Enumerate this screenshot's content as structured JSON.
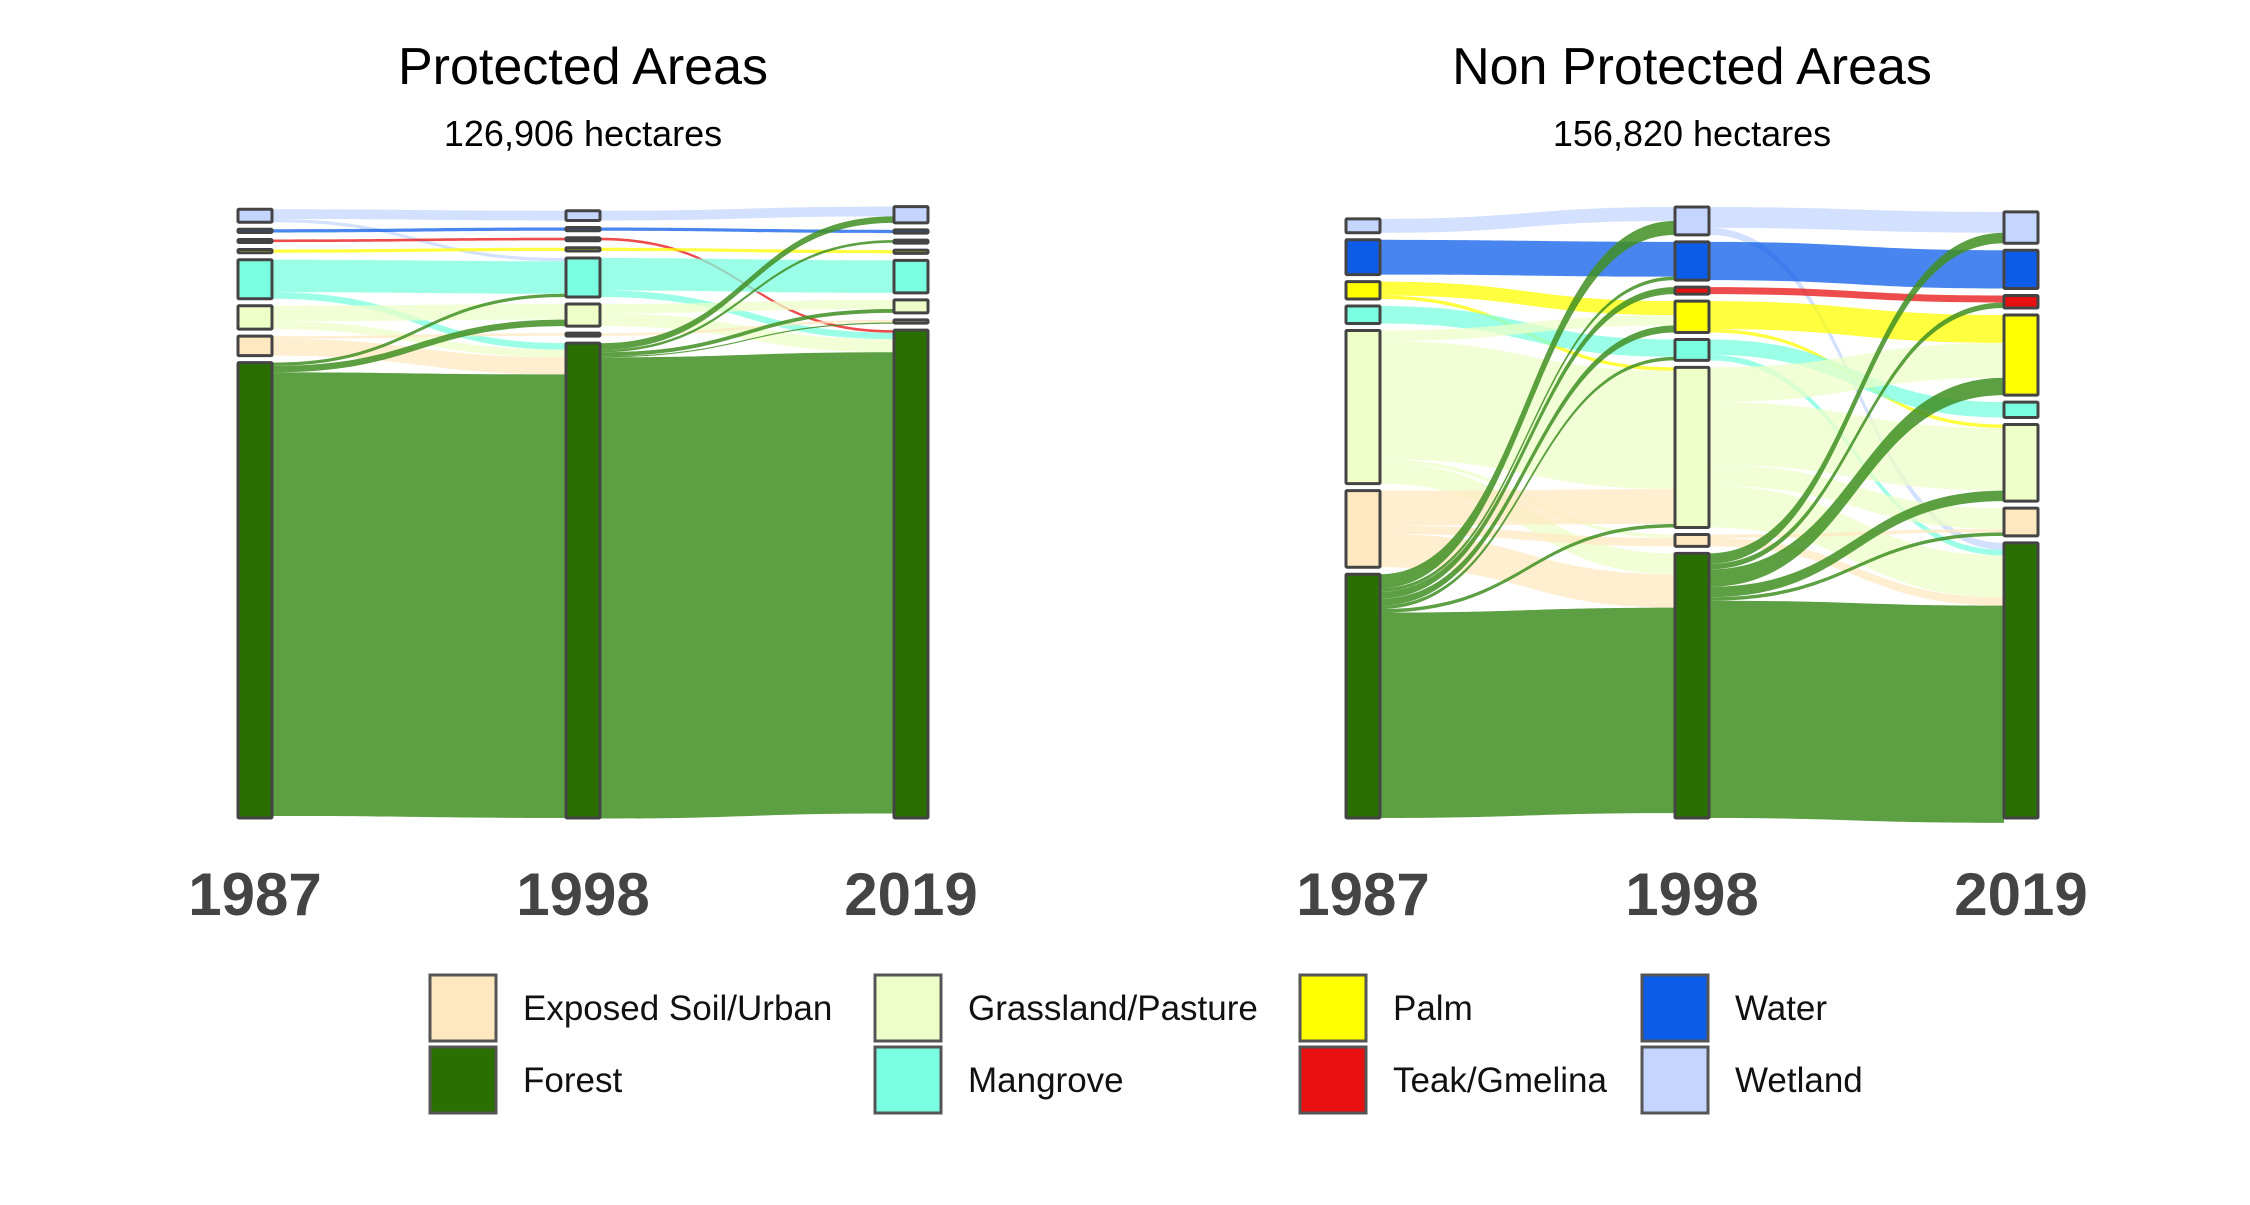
{
  "chart_data": {
    "type": "sankey",
    "years": [
      "1987",
      "1998",
      "2019"
    ],
    "colors": {
      "Exposed Soil/Urban": "#FFE8C0",
      "Forest": "#2A7000",
      "Grassland/Pasture": "#EEFFC8",
      "Mangrove": "#7AFFE0",
      "Palm": "#FFFF00",
      "Teak/Gmelina": "#E81010",
      "Water": "#0C5CE8",
      "Wetland": "#C4D6FF"
    },
    "legend": [
      {
        "label": "Exposed Soil/Urban",
        "key": "Exposed Soil/Urban"
      },
      {
        "label": "Grassland/Pasture",
        "key": "Grassland/Pasture"
      },
      {
        "label": "Palm",
        "key": "Palm"
      },
      {
        "label": "Water",
        "key": "Water"
      },
      {
        "label": "Forest",
        "key": "Forest"
      },
      {
        "label": "Mangrove",
        "key": "Mangrove"
      },
      {
        "label": "Teak/Gmelina",
        "key": "Teak/Gmelina"
      },
      {
        "label": "Wetland",
        "key": "Wetland"
      }
    ],
    "panels": [
      {
        "title": "Protected Areas",
        "subtitle": "126,906 hectares",
        "nodes": {
          "1987": [
            {
              "cls": "Wetland",
              "value": 2.0
            },
            {
              "cls": "Water",
              "value": 0.5
            },
            {
              "cls": "Teak/Gmelina",
              "value": 0.4
            },
            {
              "cls": "Palm",
              "value": 0.5
            },
            {
              "cls": "Mangrove",
              "value": 6.0
            },
            {
              "cls": "Grassland/Pasture",
              "value": 3.6
            },
            {
              "cls": "Exposed Soil/Urban",
              "value": 3.0
            },
            {
              "cls": "Forest",
              "value": 70.0
            }
          ],
          "1998": [
            {
              "cls": "Wetland",
              "value": 1.5
            },
            {
              "cls": "Water",
              "value": 0.5
            },
            {
              "cls": "Teak/Gmelina",
              "value": 0.4
            },
            {
              "cls": "Palm",
              "value": 0.5
            },
            {
              "cls": "Mangrove",
              "value": 6.0
            },
            {
              "cls": "Grassland/Pasture",
              "value": 3.4
            },
            {
              "cls": "Exposed Soil/Urban",
              "value": 0.4
            },
            {
              "cls": "Forest",
              "value": 73.0
            }
          ],
          "2019": [
            {
              "cls": "Wetland",
              "value": 2.5
            },
            {
              "cls": "Water",
              "value": 0.5
            },
            {
              "cls": "Teak/Gmelina",
              "value": 0.4
            },
            {
              "cls": "Palm",
              "value": 0.5
            },
            {
              "cls": "Mangrove",
              "value": 5.0
            },
            {
              "cls": "Grassland/Pasture",
              "value": 2.0
            },
            {
              "cls": "Exposed Soil/Urban",
              "value": 0.5
            },
            {
              "cls": "Forest",
              "value": 75.0
            }
          ]
        },
        "flows": [
          {
            "from_year": "1987",
            "from": "Wetland",
            "to": "Wetland",
            "value": 1.5
          },
          {
            "from_year": "1987",
            "from": "Wetland",
            "to": "Mangrove",
            "value": 0.5
          },
          {
            "from_year": "1987",
            "from": "Water",
            "to": "Water",
            "value": 0.5
          },
          {
            "from_year": "1987",
            "from": "Teak/Gmelina",
            "to": "Teak/Gmelina",
            "value": 0.4
          },
          {
            "from_year": "1987",
            "from": "Palm",
            "to": "Palm",
            "value": 0.5
          },
          {
            "from_year": "1987",
            "from": "Mangrove",
            "to": "Mangrove",
            "value": 5.0
          },
          {
            "from_year": "1987",
            "from": "Mangrove",
            "to": "Forest",
            "value": 1.0
          },
          {
            "from_year": "1987",
            "from": "Grassland/Pasture",
            "to": "Grassland/Pasture",
            "value": 2.4
          },
          {
            "from_year": "1987",
            "from": "Grassland/Pasture",
            "to": "Forest",
            "value": 1.2
          },
          {
            "from_year": "1987",
            "from": "Exposed Soil/Urban",
            "to": "Exposed Soil/Urban",
            "value": 0.4
          },
          {
            "from_year": "1987",
            "from": "Exposed Soil/Urban",
            "to": "Forest",
            "value": 2.6
          },
          {
            "from_year": "1987",
            "from": "Forest",
            "to": "Mangrove",
            "value": 0.5
          },
          {
            "from_year": "1987",
            "from": "Forest",
            "to": "Grassland/Pasture",
            "value": 1.0
          },
          {
            "from_year": "1987",
            "from": "Forest",
            "to": "Forest",
            "value": 68.2
          },
          {
            "from_year": "1998",
            "from": "Wetland",
            "to": "Wetland",
            "value": 1.5
          },
          {
            "from_year": "1998",
            "from": "Water",
            "to": "Water",
            "value": 0.5
          },
          {
            "from_year": "1998",
            "from": "Teak/Gmelina",
            "to": "Forest",
            "value": 0.4
          },
          {
            "from_year": "1998",
            "from": "Palm",
            "to": "Palm",
            "value": 0.5
          },
          {
            "from_year": "1998",
            "from": "Mangrove",
            "to": "Mangrove",
            "value": 5.0
          },
          {
            "from_year": "1998",
            "from": "Mangrove",
            "to": "Forest",
            "value": 1.0
          },
          {
            "from_year": "1998",
            "from": "Grassland/Pasture",
            "to": "Grassland/Pasture",
            "value": 1.4
          },
          {
            "from_year": "1998",
            "from": "Grassland/Pasture",
            "to": "Forest",
            "value": 2.0
          },
          {
            "from_year": "1998",
            "from": "Exposed Soil/Urban",
            "to": "Exposed Soil/Urban",
            "value": 0.4
          },
          {
            "from_year": "1998",
            "from": "Forest",
            "to": "Wetland",
            "value": 1.0
          },
          {
            "from_year": "1998",
            "from": "Forest",
            "to": "Teak/Gmelina",
            "value": 0.4
          },
          {
            "from_year": "1998",
            "from": "Forest",
            "to": "Grassland/Pasture",
            "value": 0.6
          },
          {
            "from_year": "1998",
            "from": "Forest",
            "to": "Exposed Soil/Urban",
            "value": 0.1
          },
          {
            "from_year": "1998",
            "from": "Forest",
            "to": "Forest",
            "value": 70.9
          }
        ]
      },
      {
        "title": "Non Protected Areas",
        "subtitle": "156,820 hectares",
        "nodes": {
          "1987": [
            {
              "cls": "Wetland",
              "value": 2.0
            },
            {
              "cls": "Water",
              "value": 5.0
            },
            {
              "cls": "Palm",
              "value": 2.5
            },
            {
              "cls": "Mangrove",
              "value": 2.5
            },
            {
              "cls": "Grassland/Pasture",
              "value": 22.0
            },
            {
              "cls": "Exposed Soil/Urban",
              "value": 11.0
            },
            {
              "cls": "Forest",
              "value": 35.0
            }
          ],
          "1998": [
            {
              "cls": "Wetland",
              "value": 4.0
            },
            {
              "cls": "Water",
              "value": 5.5
            },
            {
              "cls": "Teak/Gmelina",
              "value": 1.0
            },
            {
              "cls": "Palm",
              "value": 4.5
            },
            {
              "cls": "Mangrove",
              "value": 3.0
            },
            {
              "cls": "Grassland/Pasture",
              "value": 23.0
            },
            {
              "cls": "Exposed Soil/Urban",
              "value": 1.7
            },
            {
              "cls": "Forest",
              "value": 38.0
            }
          ],
          "2019": [
            {
              "cls": "Wetland",
              "value": 4.5
            },
            {
              "cls": "Water",
              "value": 5.5
            },
            {
              "cls": "Teak/Gmelina",
              "value": 1.8
            },
            {
              "cls": "Palm",
              "value": 11.5
            },
            {
              "cls": "Mangrove",
              "value": 2.2
            },
            {
              "cls": "Grassland/Pasture",
              "value": 11.0
            },
            {
              "cls": "Exposed Soil/Urban",
              "value": 4.0
            },
            {
              "cls": "Forest",
              "value": 39.5
            }
          ]
        },
        "flows": [
          {
            "from_year": "1987",
            "from": "Wetland",
            "to": "Wetland",
            "value": 2.0
          },
          {
            "from_year": "1987",
            "from": "Water",
            "to": "Water",
            "value": 5.0
          },
          {
            "from_year": "1987",
            "from": "Palm",
            "to": "Palm",
            "value": 2.0
          },
          {
            "from_year": "1987",
            "from": "Palm",
            "to": "Grassland/Pasture",
            "value": 0.5
          },
          {
            "from_year": "1987",
            "from": "Mangrove",
            "to": "Mangrove",
            "value": 2.5
          },
          {
            "from_year": "1987",
            "from": "Grassland/Pasture",
            "to": "Palm",
            "value": 1.5
          },
          {
            "from_year": "1987",
            "from": "Grassland/Pasture",
            "to": "Grassland/Pasture",
            "value": 17.0
          },
          {
            "from_year": "1987",
            "from": "Grassland/Pasture",
            "to": "Exposed Soil/Urban",
            "value": 0.5
          },
          {
            "from_year": "1987",
            "from": "Grassland/Pasture",
            "to": "Forest",
            "value": 3.0
          },
          {
            "from_year": "1987",
            "from": "Exposed Soil/Urban",
            "to": "Grassland/Pasture",
            "value": 5.0
          },
          {
            "from_year": "1987",
            "from": "Exposed Soil/Urban",
            "to": "Exposed Soil/Urban",
            "value": 1.2
          },
          {
            "from_year": "1987",
            "from": "Exposed Soil/Urban",
            "to": "Forest",
            "value": 4.8
          },
          {
            "from_year": "1987",
            "from": "Forest",
            "to": "Wetland",
            "value": 2.0
          },
          {
            "from_year": "1987",
            "from": "Forest",
            "to": "Water",
            "value": 0.5
          },
          {
            "from_year": "1987",
            "from": "Forest",
            "to": "Teak/Gmelina",
            "value": 1.0
          },
          {
            "from_year": "1987",
            "from": "Forest",
            "to": "Palm",
            "value": 1.0
          },
          {
            "from_year": "1987",
            "from": "Forest",
            "to": "Mangrove",
            "value": 0.5
          },
          {
            "from_year": "1987",
            "from": "Forest",
            "to": "Grassland/Pasture",
            "value": 0.5
          },
          {
            "from_year": "1987",
            "from": "Forest",
            "to": "Forest",
            "value": 29.5
          },
          {
            "from_year": "1998",
            "from": "Wetland",
            "to": "Wetland",
            "value": 3.0
          },
          {
            "from_year": "1998",
            "from": "Wetland",
            "to": "Forest",
            "value": 1.0
          },
          {
            "from_year": "1998",
            "from": "Water",
            "to": "Water",
            "value": 5.5
          },
          {
            "from_year": "1998",
            "from": "Teak/Gmelina",
            "to": "Teak/Gmelina",
            "value": 1.0
          },
          {
            "from_year": "1998",
            "from": "Palm",
            "to": "Palm",
            "value": 4.0
          },
          {
            "from_year": "1998",
            "from": "Palm",
            "to": "Grassland/Pasture",
            "value": 0.5
          },
          {
            "from_year": "1998",
            "from": "Mangrove",
            "to": "Mangrove",
            "value": 2.2
          },
          {
            "from_year": "1998",
            "from": "Mangrove",
            "to": "Forest",
            "value": 0.8
          },
          {
            "from_year": "1998",
            "from": "Grassland/Pasture",
            "to": "Palm",
            "value": 5.0
          },
          {
            "from_year": "1998",
            "from": "Grassland/Pasture",
            "to": "Grassland/Pasture",
            "value": 9.0
          },
          {
            "from_year": "1998",
            "from": "Grassland/Pasture",
            "to": "Exposed Soil/Urban",
            "value": 3.0
          },
          {
            "from_year": "1998",
            "from": "Grassland/Pasture",
            "to": "Forest",
            "value": 6.0
          },
          {
            "from_year": "1998",
            "from": "Exposed Soil/Urban",
            "to": "Exposed Soil/Urban",
            "value": 0.5
          },
          {
            "from_year": "1998",
            "from": "Exposed Soil/Urban",
            "to": "Forest",
            "value": 1.2
          },
          {
            "from_year": "1998",
            "from": "Forest",
            "to": "Wetland",
            "value": 1.5
          },
          {
            "from_year": "1998",
            "from": "Forest",
            "to": "Teak/Gmelina",
            "value": 0.8
          },
          {
            "from_year": "1998",
            "from": "Forest",
            "to": "Palm",
            "value": 2.5
          },
          {
            "from_year": "1998",
            "from": "Forest",
            "to": "Grassland/Pasture",
            "value": 1.5
          },
          {
            "from_year": "1998",
            "from": "Forest",
            "to": "Exposed Soil/Urban",
            "value": 0.5
          },
          {
            "from_year": "1998",
            "from": "Forest",
            "to": "Forest",
            "value": 31.2
          }
        ]
      }
    ]
  }
}
